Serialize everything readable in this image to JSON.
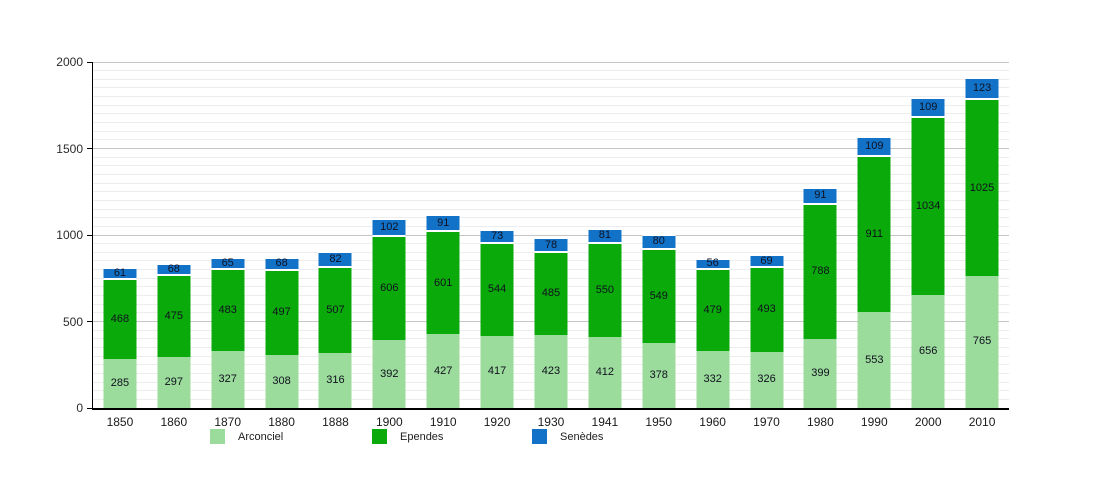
{
  "chart_data": {
    "type": "bar",
    "stacked": true,
    "title": "",
    "categories": [
      "1850",
      "1860",
      "1870",
      "1880",
      "1888",
      "1900",
      "1910",
      "1920",
      "1930",
      "1941",
      "1950",
      "1960",
      "1970",
      "1980",
      "1990",
      "2000",
      "2010"
    ],
    "series": [
      {
        "name": "Arconciel",
        "color": "#9BDB9B",
        "values": [
          285,
          297,
          327,
          308,
          316,
          392,
          427,
          417,
          423,
          412,
          378,
          332,
          326,
          399,
          553,
          656,
          765
        ]
      },
      {
        "name": "Ependes",
        "color": "#0BAA0B",
        "values": [
          468,
          475,
          483,
          497,
          507,
          606,
          601,
          544,
          485,
          550,
          549,
          479,
          493,
          788,
          911,
          1034,
          1025
        ]
      },
      {
        "name": "Senèdes",
        "color": "#1272C8",
        "values": [
          61,
          68,
          65,
          68,
          82,
          102,
          91,
          73,
          78,
          81,
          80,
          56,
          69,
          91,
          109,
          109,
          123
        ]
      }
    ],
    "ylim": [
      0,
      2000
    ],
    "yticks": [
      0,
      500,
      1000,
      1500,
      2000
    ],
    "grid": {
      "minor_step": 50,
      "major_step": 500
    },
    "legend_position": "bottom",
    "value_labels": "inside-segments",
    "value_label_color": "#10101e"
  }
}
